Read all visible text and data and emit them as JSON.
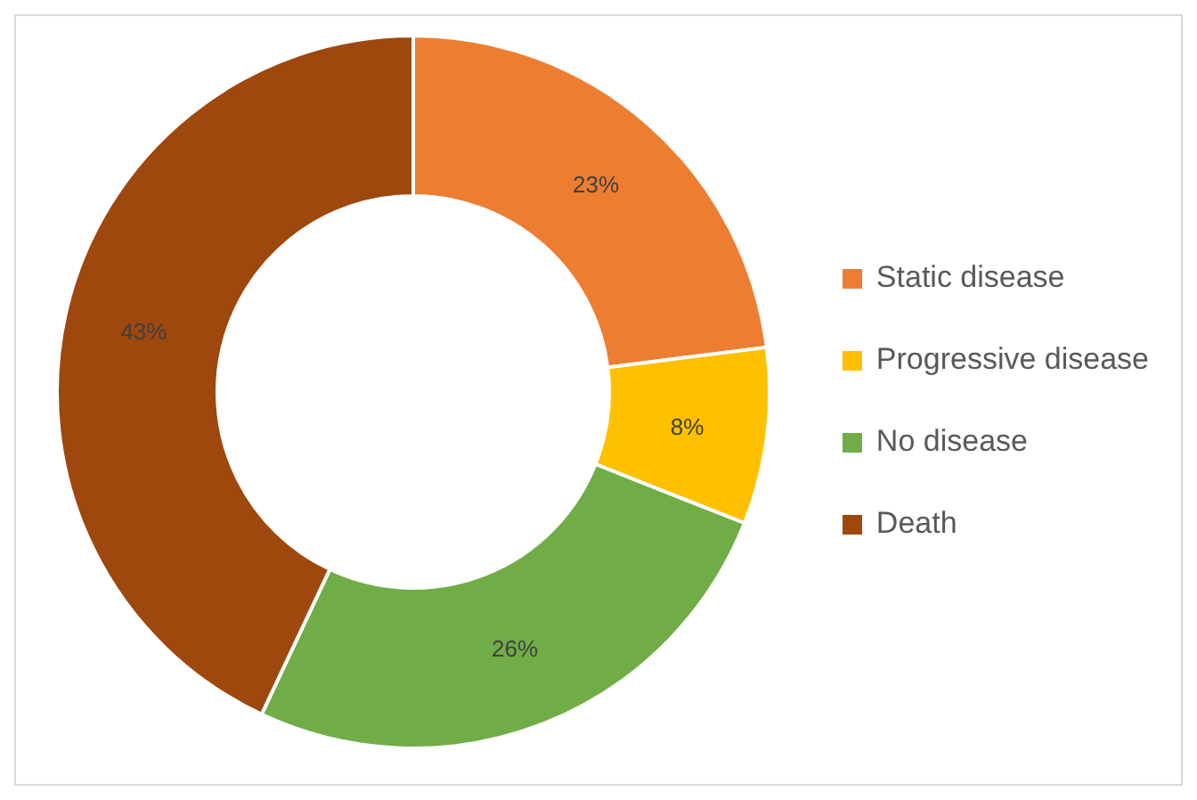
{
  "chart_data": {
    "type": "donut",
    "categories": [
      "Static disease",
      "Progressive disease",
      "No disease",
      "Death"
    ],
    "values": [
      23,
      8,
      26,
      43
    ],
    "colors": [
      "#ed7d31",
      "#ffc000",
      "#70ad47",
      "#9e480e"
    ],
    "value_labels": [
      "23%",
      "8%",
      "26%",
      "43%"
    ],
    "legend": "right"
  }
}
